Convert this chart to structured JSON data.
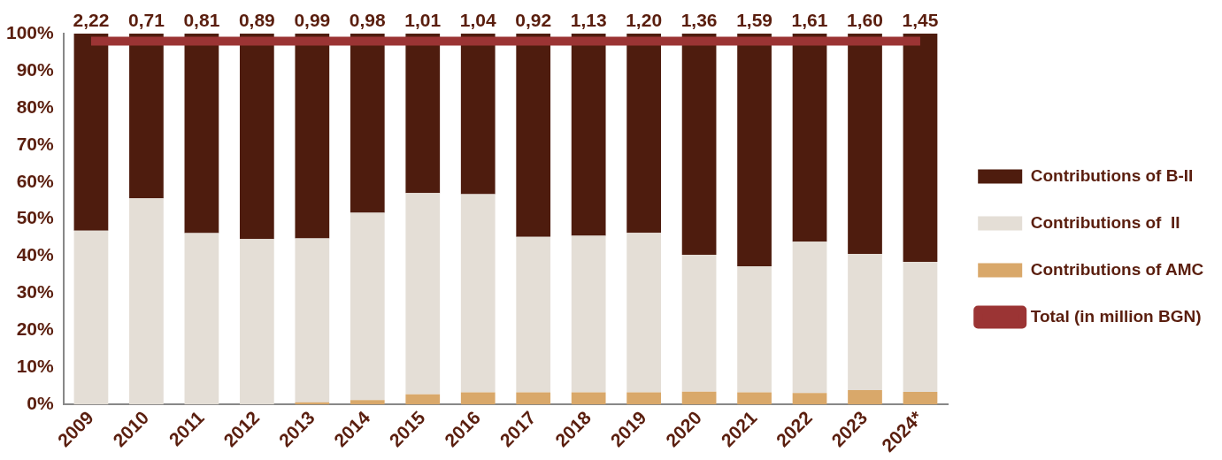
{
  "chart_data": {
    "type": "bar",
    "stacked": true,
    "categories": [
      "2009",
      "2010",
      "2011",
      "2012",
      "2013",
      "2014",
      "2015",
      "2016",
      "2017",
      "2018",
      "2019",
      "2020",
      "2021",
      "2022",
      "2023",
      "2024*"
    ],
    "series": [
      {
        "name": "Contributions of AMC",
        "color": "#d9a86a",
        "values": [
          0,
          0,
          0,
          0,
          0.6,
          1.2,
          2.8,
          3.3,
          3.3,
          3.3,
          3.3,
          3.5,
          3.3,
          3.1,
          3.9,
          3.4
        ]
      },
      {
        "name": "Contributions of  II",
        "color": "#e4ded6",
        "values": [
          46.9,
          55.6,
          46.2,
          44.6,
          44.2,
          50.5,
          54.2,
          53.4,
          41.9,
          42.2,
          43.0,
          36.9,
          34.0,
          40.8,
          36.7,
          35.1
        ]
      },
      {
        "name": "Contributions of B-II",
        "color": "#4e1c0e",
        "values": [
          53.1,
          44.4,
          53.8,
          55.4,
          55.2,
          48.3,
          43.0,
          43.3,
          54.8,
          54.5,
          53.7,
          59.6,
          62.7,
          56.1,
          59.4,
          61.5
        ]
      },
      {
        "name": "Total (in million BGN)",
        "type": "line",
        "color": "#9b3434",
        "values": [
          98,
          98,
          98,
          98,
          98,
          98,
          98,
          98,
          98,
          98,
          98,
          98,
          98,
          98,
          98,
          98
        ]
      }
    ],
    "annotations": [
      {
        "text": "2,22",
        "x": "2009",
        "y": 98
      },
      {
        "text": "0,71",
        "x": "2010",
        "y": 98
      },
      {
        "text": "0,81",
        "x": "2011",
        "y": 98
      },
      {
        "text": "0,89",
        "x": "2012",
        "y": 98
      },
      {
        "text": "0,99",
        "x": "2013",
        "y": 98
      },
      {
        "text": "0,98",
        "x": "2014",
        "y": 98
      },
      {
        "text": "1,01",
        "x": "2015",
        "y": 98
      },
      {
        "text": "1,04",
        "x": "2016",
        "y": 98
      },
      {
        "text": "0,92",
        "x": "2017",
        "y": 98
      },
      {
        "text": "1,13",
        "x": "2018",
        "y": 98
      },
      {
        "text": "1,20",
        "x": "2019",
        "y": 98
      },
      {
        "text": "1,36",
        "x": "2020",
        "y": 98
      },
      {
        "text": "1,59",
        "x": "2021",
        "y": 98
      },
      {
        "text": "1,61",
        "x": "2022",
        "y": 98
      },
      {
        "text": "1,60",
        "x": "2023",
        "y": 98
      },
      {
        "text": "1,45",
        "x": "2024*",
        "y": 98
      }
    ],
    "ylim": [
      0,
      100
    ],
    "yticks": [
      {
        "value": 0,
        "label": "0%"
      },
      {
        "value": 10,
        "label": "10%"
      },
      {
        "value": 20,
        "label": "20%"
      },
      {
        "value": 30,
        "label": "30%"
      },
      {
        "value": 40,
        "label": "40%"
      },
      {
        "value": 50,
        "label": "50%"
      },
      {
        "value": 60,
        "label": "60%"
      },
      {
        "value": 70,
        "label": "70%"
      },
      {
        "value": 80,
        "label": "80%"
      },
      {
        "value": 90,
        "label": "90%"
      },
      {
        "value": 100,
        "label": "100%"
      }
    ],
    "grid": false,
    "legend": "right",
    "marker": "none"
  }
}
